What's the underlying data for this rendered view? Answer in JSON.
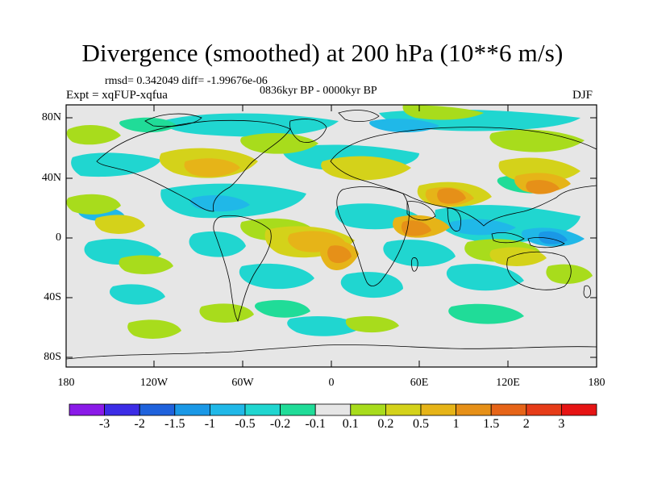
{
  "title": "Divergence (smoothed) at 200 hPa (10**6 m/s)",
  "stats": "rmsd= 0.342049 diff= -1.99676e-06",
  "experiment": "Expt = xqFUP-xqfua",
  "period": "0836kyr BP - 0000kyr BP",
  "season": "DJF",
  "lat_labels": [
    "80N",
    "40N",
    "0",
    "40S",
    "80S"
  ],
  "lon_labels": [
    "180",
    "120W",
    "60W",
    "0",
    "60E",
    "120E",
    "180"
  ],
  "colorbar": {
    "labels": [
      "-3",
      "-2",
      "-1.5",
      "-1",
      "-0.5",
      "-0.2",
      "-0.1",
      "0.1",
      "0.2",
      "0.5",
      "1",
      "1.5",
      "2",
      "3"
    ],
    "colors": [
      "#8a1ae8",
      "#3c2ce6",
      "#1f62dc",
      "#1a98e6",
      "#20b8e8",
      "#20d6d0",
      "#20dc98",
      "#e6e6e6",
      "#a8dc1c",
      "#d4d21a",
      "#e6b418",
      "#e69018",
      "#e66418",
      "#e63c18",
      "#e61414"
    ]
  }
}
